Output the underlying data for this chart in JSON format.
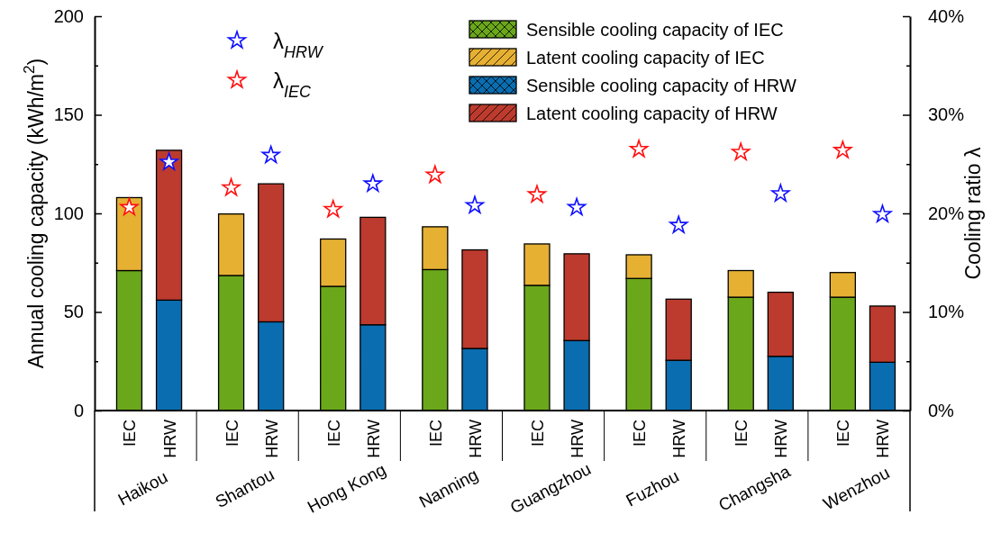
{
  "chart_data": {
    "type": "bar",
    "stacked": true,
    "ylabel": "Annual cooling capacity (kWh/m$^{2}$)",
    "y2label": "Cooling ratio λ",
    "categories": [
      "IEC",
      "HRW",
      "IEC",
      "HRW",
      "IEC",
      "HRW",
      "IEC",
      "HRW",
      "IEC",
      "HRW",
      "IEC",
      "HRW",
      "IEC",
      "HRW",
      "IEC",
      "HRW"
    ],
    "annotations": [
      "Haikou",
      "Shantou",
      "Hong Kong",
      "Nanning",
      "Guangzhou",
      "Fuzhou",
      "Changsha",
      "Wenzhou"
    ],
    "ylim": [
      0,
      200
    ],
    "yticks": [
      0,
      {
        "value": 25,
        "label": null
      },
      50,
      {
        "value": 75,
        "label": null
      },
      100,
      {
        "value": 125,
        "label": null
      },
      150,
      {
        "value": 175,
        "label": null
      },
      200
    ],
    "y2lim": [
      0,
      40
    ],
    "y2ticks": [
      {
        "value": 0,
        "label": "0%"
      },
      {
        "value": 5,
        "label": null
      },
      {
        "value": 10,
        "label": "10%"
      },
      {
        "value": 15,
        "label": null
      },
      {
        "value": 20,
        "label": "20%"
      },
      {
        "value": 25,
        "label": null
      },
      {
        "value": 30,
        "label": "30%"
      },
      {
        "value": 35,
        "label": null
      },
      {
        "value": 40,
        "label": "40%"
      }
    ],
    "legend": "top right",
    "marker": "star",
    "grid": false,
    "series": [
      {
        "name": "Sensible cooling capacity of IEC",
        "color": "#6aa71b",
        "values": [
          71,
          null,
          68.5,
          null,
          63,
          null,
          71.5,
          null,
          63.5,
          null,
          67,
          null,
          57.5,
          null,
          57.5,
          null
        ]
      },
      {
        "name": "Latent cooling capacity of IEC",
        "color": "#e6b033",
        "values": [
          37,
          null,
          31.2,
          null,
          24,
          null,
          21.7,
          null,
          21,
          null,
          12,
          null,
          13.5,
          null,
          12.5,
          null
        ]
      },
      {
        "name": "Sensible cooling capacity of HRW",
        "color": "#0a6db0",
        "values": [
          null,
          56,
          null,
          45,
          null,
          43.5,
          null,
          31.5,
          null,
          35.5,
          null,
          25.5,
          null,
          27.5,
          null,
          24.5
        ]
      },
      {
        "name": "Latent cooling capacity of HRW",
        "color": "#bc3b2e",
        "values": [
          null,
          76,
          null,
          70,
          null,
          54.5,
          null,
          50,
          null,
          44,
          null,
          31,
          null,
          32.5,
          null,
          28.5
        ]
      },
      {
        "name": "λ$_{HRW}$",
        "type": "scatter",
        "axis": "y2",
        "color": "#1010ff",
        "values": [
          null,
          25.2,
          null,
          25.9,
          null,
          23.0,
          null,
          20.8,
          null,
          20.6,
          null,
          18.8,
          null,
          22.0,
          null,
          19.9
        ]
      },
      {
        "name": "λ$_{IEC}$",
        "type": "scatter",
        "axis": "y2",
        "color": "#ff1010",
        "values": [
          20.6,
          null,
          22.6,
          null,
          20.4,
          null,
          23.9,
          null,
          21.9,
          null,
          26.5,
          null,
          26.2,
          null,
          26.4,
          null
        ]
      }
    ]
  }
}
